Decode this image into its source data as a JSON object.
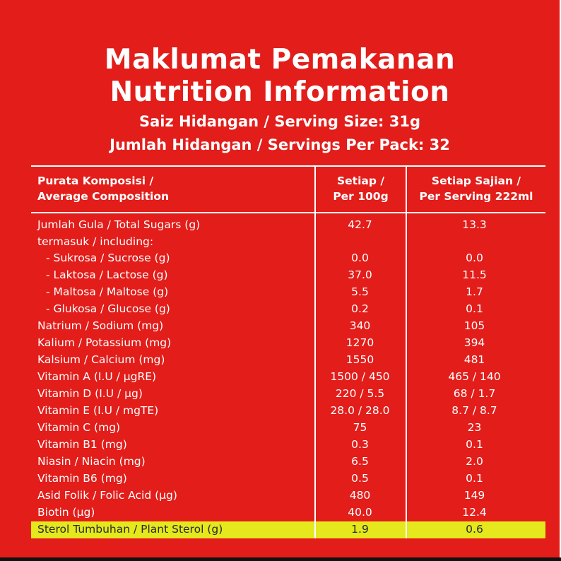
{
  "title_ms": "Maklumat Pemakanan",
  "title_en": "Nutrition Information",
  "serving_size": "Saiz Hidangan / Serving Size: 31g",
  "servings_per_pack": "Jumlah Hidangan / Servings Per Pack: 32",
  "table": {
    "headers": {
      "composition_line1": "Purata Komposisi /",
      "composition_line2": "Average Composition",
      "per100_line1": "Setiap /",
      "per100_line2": "Per 100g",
      "serving_line1": "Setiap Sajian /",
      "serving_line2": "Per Serving 222ml"
    },
    "rows": [
      {
        "name": "Jumlah Gula / Total Sugars (g)",
        "per100": "42.7",
        "serving": "13.3"
      },
      {
        "name": "termasuk / including:",
        "per100": "",
        "serving": ""
      },
      {
        "name": "- Sukrosa / Sucrose (g)",
        "per100": "0.0",
        "serving": "0.0"
      },
      {
        "name": "- Laktosa / Lactose (g)",
        "per100": "37.0",
        "serving": "11.5"
      },
      {
        "name": "- Maltosa / Maltose (g)",
        "per100": "5.5",
        "serving": "1.7"
      },
      {
        "name": "- Glukosa / Glucose (g)",
        "per100": "0.2",
        "serving": "0.1"
      },
      {
        "name": "Natrium / Sodium (mg)",
        "per100": "340",
        "serving": "105"
      },
      {
        "name": "Kalium / Potassium (mg)",
        "per100": "1270",
        "serving": "394"
      },
      {
        "name": "Kalsium / Calcium (mg)",
        "per100": "1550",
        "serving": "481"
      },
      {
        "name": "Vitamin A (I.U / µgRE)",
        "per100": "1500 / 450",
        "serving": "465 / 140"
      },
      {
        "name": "Vitamin D (I.U / µg)",
        "per100": "220 / 5.5",
        "serving": "68 / 1.7"
      },
      {
        "name": "Vitamin E (I.U / mgTE)",
        "per100": "28.0 / 28.0",
        "serving": "8.7 / 8.7"
      },
      {
        "name": "Vitamin C (mg)",
        "per100": "75",
        "serving": "23"
      },
      {
        "name": "Vitamin B1 (mg)",
        "per100": "0.3",
        "serving": "0.1"
      },
      {
        "name": "Niasin / Niacin (mg)",
        "per100": "6.5",
        "serving": "2.0"
      },
      {
        "name": "Vitamin B6 (mg)",
        "per100": "0.5",
        "serving": "0.1"
      },
      {
        "name": "Asid Folik / Folic Acid (µg)",
        "per100": "480",
        "serving": "149"
      },
      {
        "name": "Biotin (µg)",
        "per100": "40.0",
        "serving": "12.4"
      },
      {
        "name": "Sterol Tumbuhan / Plant Sterol (g)",
        "per100": "1.9",
        "serving": "0.6"
      }
    ]
  },
  "colors": {
    "background": "#e21d1a",
    "text": "#ffffff",
    "highlight": "#e4e81c"
  }
}
